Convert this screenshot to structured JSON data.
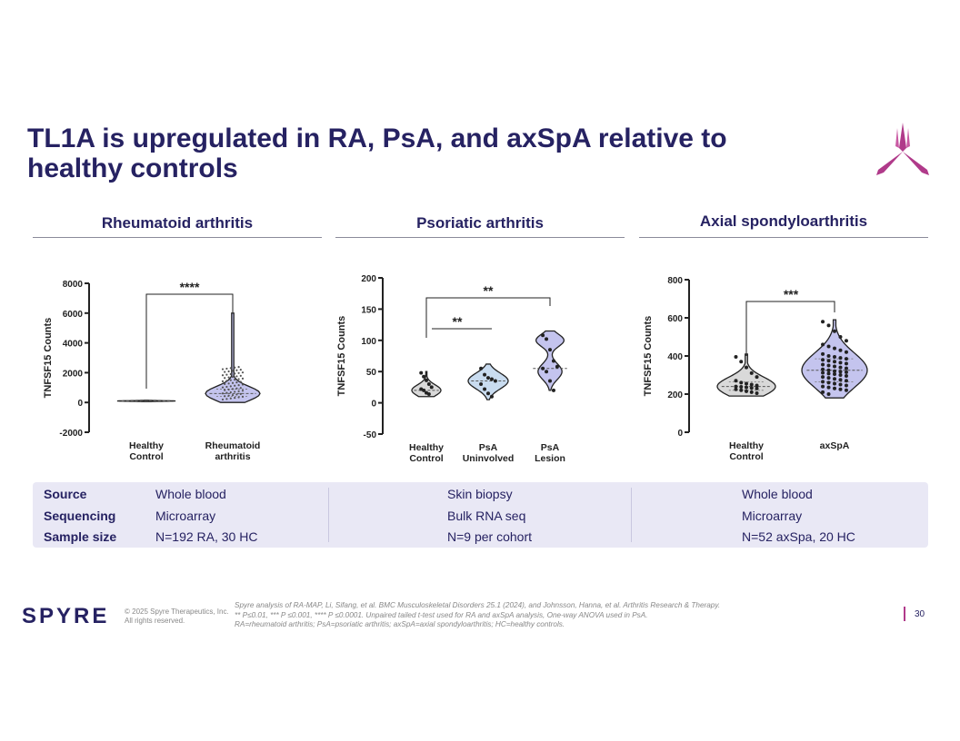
{
  "slide": {
    "title": "TL1A is upregulated in RA, PsA, and axSpA relative to healthy controls",
    "page_number": "30"
  },
  "colors": {
    "navy": "#262262",
    "magenta": "#b03a8a",
    "violin_gray": "#d9d9d9",
    "violin_blue": "#c9dcf0",
    "violin_violet": "#c4c4ee"
  },
  "panels": [
    {
      "heading": "Rheumatoid arthritis"
    },
    {
      "heading": "Psoriatic arthritis"
    },
    {
      "heading": "Axial spondyloarthritis"
    }
  ],
  "chart_data": [
    {
      "type": "violin",
      "title": "Rheumatoid arthritis",
      "ylabel": "TNFSF15 Counts",
      "ylim": [
        -2000,
        8000
      ],
      "yticks": [
        "8000",
        "6000",
        "4000",
        "2000",
        "0",
        "-2000"
      ],
      "categories": [
        "Healthy Control",
        "Rheumatoid arthritis"
      ],
      "category_lines": [
        [
          "Healthy",
          "Control"
        ],
        [
          "Rheumatoid",
          "arthritis"
        ]
      ],
      "series": [
        {
          "name": "Healthy Control",
          "median": 100,
          "min": 60,
          "max": 150,
          "n": 30
        },
        {
          "name": "Rheumatoid arthritis",
          "median": 600,
          "q1": 400,
          "q3": 900,
          "min": 0,
          "max": 6000,
          "n": 192
        }
      ],
      "comparisons": [
        {
          "from": "Healthy Control",
          "to": "Rheumatoid arthritis",
          "label": "****"
        }
      ]
    },
    {
      "type": "violin",
      "title": "Psoriatic arthritis",
      "ylabel": "TNFSF15 Counts",
      "ylim": [
        -50,
        200
      ],
      "yticks": [
        "200",
        "150",
        "100",
        "50",
        "0",
        "-50"
      ],
      "categories": [
        "Healthy Control",
        "PsA Uninvolved",
        "PsA Lesion"
      ],
      "category_lines": [
        [
          "Healthy",
          "Control"
        ],
        [
          "PsA",
          "Uninvolved"
        ],
        [
          "PsA",
          "Lesion"
        ]
      ],
      "series": [
        {
          "name": "Healthy Control",
          "median": 20,
          "min": 10,
          "max": 50,
          "points": [
            48,
            42,
            36,
            30,
            25,
            22,
            20,
            16,
            14
          ]
        },
        {
          "name": "PsA Uninvolved",
          "median": 35,
          "min": 5,
          "max": 62,
          "points": [
            55,
            45,
            40,
            38,
            35,
            30,
            22,
            15,
            10
          ]
        },
        {
          "name": "PsA Lesion",
          "median": 55,
          "min": 20,
          "max": 115,
          "points": [
            108,
            102,
            85,
            67,
            58,
            55,
            50,
            35,
            20
          ]
        }
      ],
      "comparisons": [
        {
          "from": "Healthy Control",
          "to": "PsA Lesion",
          "label": "**"
        },
        {
          "from": "Healthy Control",
          "to": "PsA Uninvolved",
          "label": "**"
        }
      ]
    },
    {
      "type": "violin",
      "title": "Axial spondyloarthritis",
      "ylabel": "TNFSF15 Counts",
      "ylim": [
        0,
        800
      ],
      "yticks": [
        "800",
        "600",
        "400",
        "200",
        "0"
      ],
      "categories": [
        "Healthy Control",
        "axSpA"
      ],
      "category_lines": [
        [
          "Healthy",
          "Control"
        ],
        [
          "axSpA"
        ]
      ],
      "series": [
        {
          "name": "Healthy Control",
          "median": 240,
          "q1": 220,
          "q3": 265,
          "min": 190,
          "max": 410,
          "points": [
            395,
            370,
            340,
            310,
            290,
            270,
            260,
            255,
            250,
            245,
            240,
            238,
            235,
            232,
            230,
            225,
            220,
            215,
            210,
            205
          ]
        },
        {
          "name": "axSpA",
          "median": 325,
          "q1": 265,
          "q3": 385,
          "min": 180,
          "max": 590,
          "points": [
            580,
            560,
            530,
            500,
            480,
            460,
            450,
            440,
            430,
            420,
            410,
            400,
            395,
            390,
            385,
            380,
            375,
            370,
            365,
            360,
            355,
            350,
            345,
            340,
            335,
            330,
            325,
            320,
            318,
            315,
            312,
            308,
            305,
            300,
            295,
            290,
            285,
            280,
            275,
            270,
            265,
            260,
            255,
            250,
            245,
            240,
            235,
            230,
            225,
            220,
            210,
            200
          ]
        }
      ],
      "comparisons": [
        {
          "from": "Healthy Control",
          "to": "axSpA",
          "label": "***"
        }
      ]
    }
  ],
  "info_table": {
    "rows": [
      {
        "label": "Source",
        "values": [
          "Whole blood",
          "Skin biopsy",
          "Whole blood"
        ]
      },
      {
        "label": "Sequencing",
        "values": [
          "Microarray",
          "Bulk RNA seq",
          "Microarray"
        ]
      },
      {
        "label": "Sample size",
        "values": [
          "N=192 RA, 30 HC",
          "N=9 per cohort",
          "N=52 axSpa, 20 HC"
        ]
      }
    ]
  },
  "footer": {
    "logo_text": "SPYRE",
    "copyright_line1": "© 2025 Spyre Therapeutics, Inc.",
    "copyright_line2": "All rights reserved.",
    "note_line1": "Spyre analysis of RA-MAP, Li, Sifang, et al. BMC Musculoskeletal Disorders 25.1 (2024), and Johnsson, Hanna, et al. Arthritis Research & Therapy.",
    "note_line2": " ** P≤0.01, *** P ≤0.001, **** P ≤0.0001. Unpaired tailed t-test used for RA and axSpA analysis, One-way ANOVA used in PsA.",
    "note_line3": "RA=rheumatoid arthritis; PsA=psoriatic arthritis; axSpA=axial spondyloarthritis; HC=healthy controls."
  }
}
